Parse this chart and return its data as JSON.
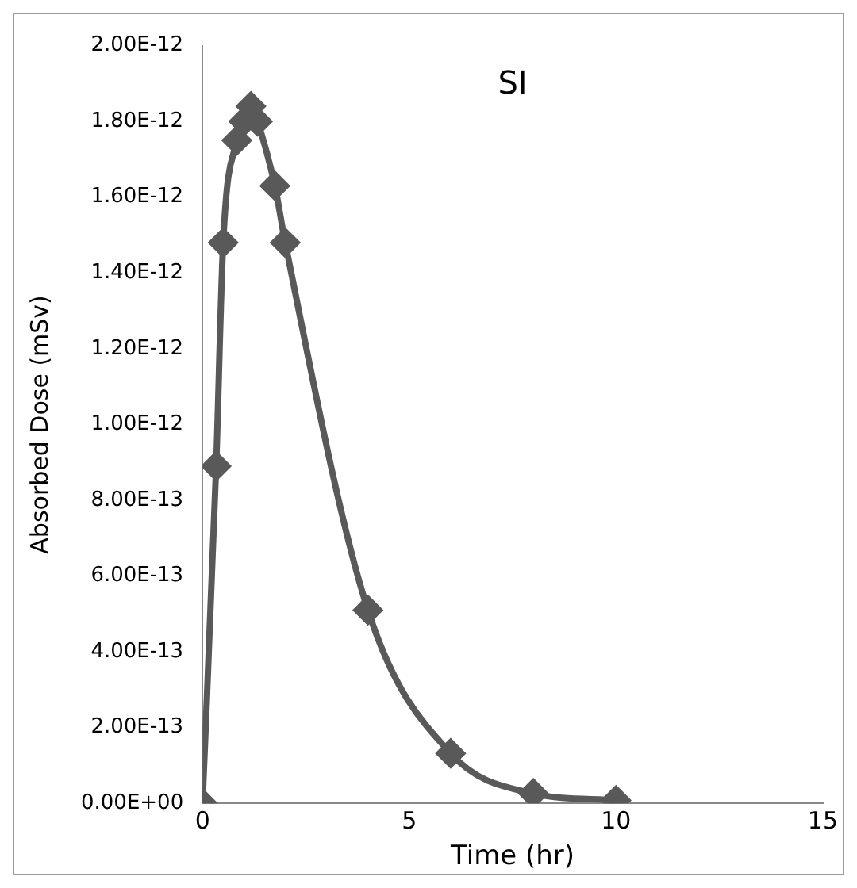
{
  "chart_data": {
    "type": "line",
    "title": "SI",
    "xlabel": "Time (hr)",
    "ylabel": "Absorbed Dose (mSv)",
    "x": [
      0,
      0.33,
      0.5,
      0.83,
      1,
      1.17,
      1.33,
      1.75,
      2,
      4,
      6,
      8,
      10
    ],
    "series": [
      {
        "color": "#595959",
        "values": [
          0,
          8.9e-13,
          1.48e-12,
          1.75e-12,
          1.8e-12,
          1.84e-12,
          1.8e-12,
          1.63e-12,
          1.48e-12,
          5.1e-13,
          1.32e-13,
          2.6e-14,
          8e-15
        ]
      }
    ],
    "xlim": [
      0,
      15
    ],
    "xticks": [
      0,
      5,
      10,
      15
    ],
    "ylim": [
      0,
      2e-12
    ],
    "yticks": [
      {
        "value": 0,
        "label": "0.00E+00"
      },
      {
        "value": 2e-13,
        "label": "2.00E-13"
      },
      {
        "value": 4e-13,
        "label": "4.00E-13"
      },
      {
        "value": 6e-13,
        "label": "6.00E-13"
      },
      {
        "value": 8e-13,
        "label": "8.00E-13"
      },
      {
        "value": 1e-12,
        "label": "1.00E-12"
      },
      {
        "value": 1.2e-12,
        "label": "1.20E-12"
      },
      {
        "value": 1.4e-12,
        "label": "1.40E-12"
      },
      {
        "value": 1.6e-12,
        "label": "1.60E-12"
      },
      {
        "value": 1.8e-12,
        "label": "1.80E-12"
      },
      {
        "value": 2e-12,
        "label": "2.00E-12"
      }
    ],
    "grid": false,
    "legend": false,
    "marker": "diamond",
    "line_style": "solid"
  }
}
